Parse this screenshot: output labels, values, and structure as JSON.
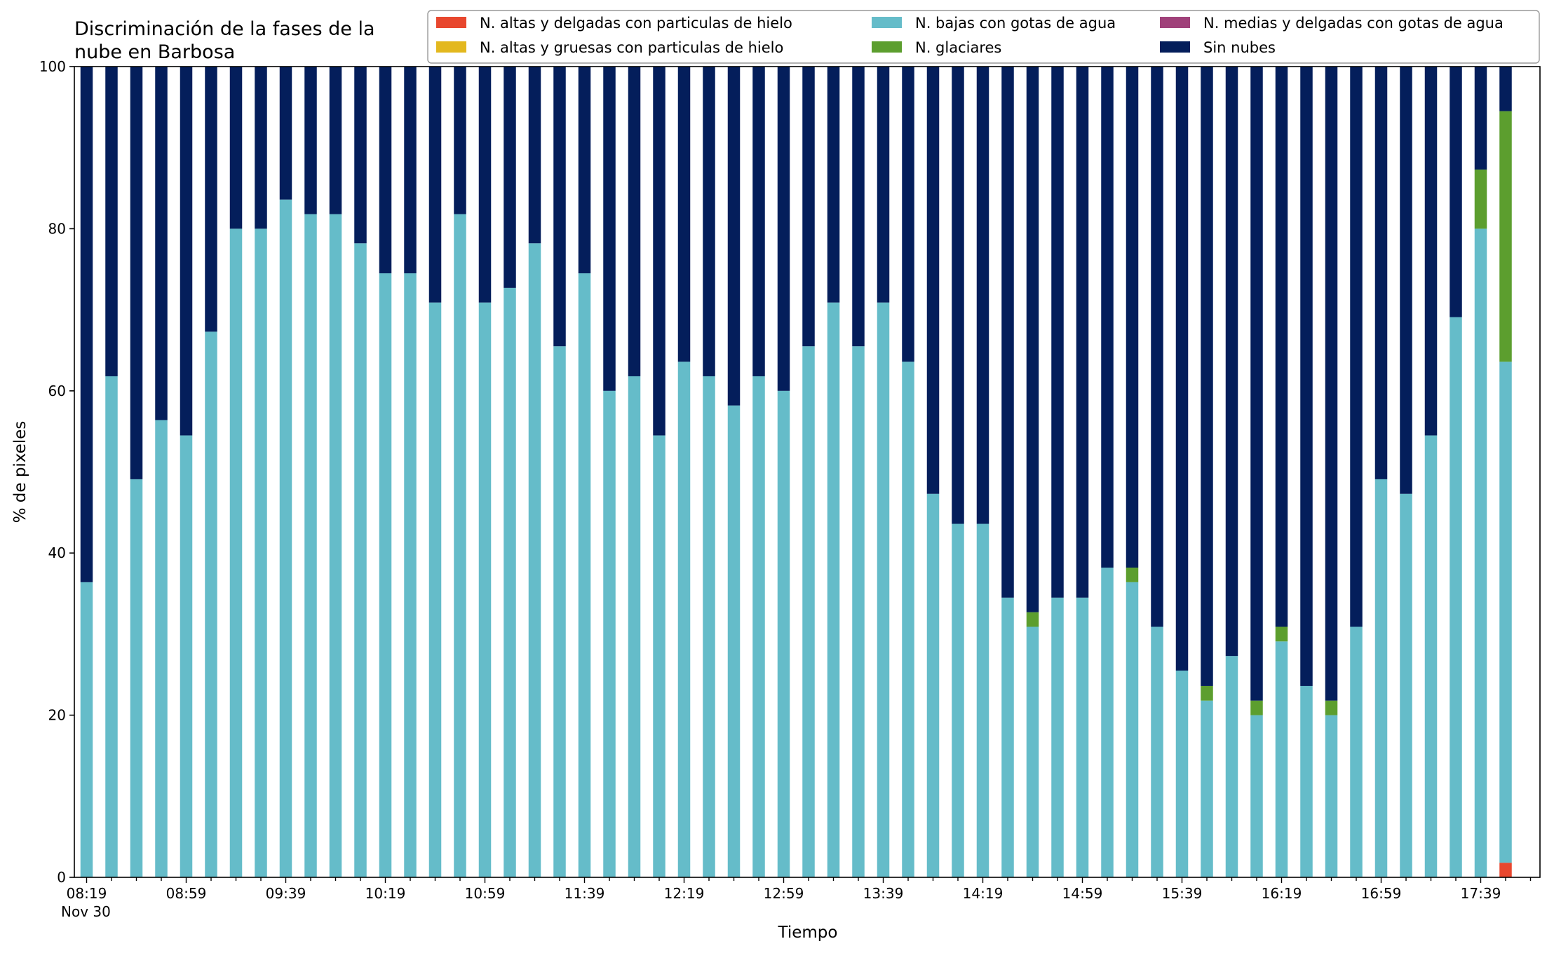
{
  "chart_data": {
    "type": "bar",
    "stacked": true,
    "title": "Discriminación de la fases de la nube en Barbosa",
    "title_lines": [
      "Discriminación de la fases de la",
      "nube en Barbosa"
    ],
    "xlabel": "Tiempo",
    "ylabel": "% de pixeles",
    "ylim": [
      0,
      100
    ],
    "yticks": [
      0,
      20,
      40,
      60,
      80,
      100
    ],
    "xtick_labels": [
      "08:19",
      "08:59",
      "09:39",
      "10:19",
      "10:59",
      "11:39",
      "12:19",
      "12:59",
      "13:39",
      "14:19",
      "14:59",
      "15:39",
      "16:19",
      "16:59",
      "17:39"
    ],
    "xtick_sublabel": "Nov 30",
    "grid": false,
    "legend_position": "top",
    "x": [
      "08:19",
      "08:29",
      "08:39",
      "08:49",
      "08:59",
      "09:09",
      "09:19",
      "09:29",
      "09:39",
      "09:49",
      "09:59",
      "10:09",
      "10:19",
      "10:29",
      "10:39",
      "10:49",
      "10:59",
      "11:09",
      "11:19",
      "11:29",
      "11:39",
      "11:49",
      "11:59",
      "12:09",
      "12:19",
      "12:29",
      "12:39",
      "12:49",
      "12:59",
      "13:09",
      "13:19",
      "13:29",
      "13:39",
      "13:49",
      "13:59",
      "14:09",
      "14:19",
      "14:29",
      "14:39",
      "14:49",
      "14:59",
      "15:09",
      "15:19",
      "15:29",
      "15:39",
      "15:49",
      "15:59",
      "16:09",
      "16:19",
      "16:29",
      "16:39",
      "16:49",
      "16:59",
      "17:09",
      "17:19",
      "17:29",
      "17:39",
      "17:49"
    ],
    "series": [
      {
        "name": "N. altas y delgadas con particulas de hielo",
        "color": "#e8472e",
        "values": [
          0,
          0,
          0,
          0,
          0,
          0,
          0,
          0,
          0,
          0,
          0,
          0,
          0,
          0,
          0,
          0,
          0,
          0,
          0,
          0,
          0,
          0,
          0,
          0,
          0,
          0,
          0,
          0,
          0,
          0,
          0,
          0,
          0,
          0,
          0,
          0,
          0,
          0,
          0,
          0,
          0,
          0,
          0,
          0,
          0,
          0,
          0,
          0,
          0,
          0,
          0,
          0,
          0,
          0,
          0,
          0,
          0,
          1.8
        ]
      },
      {
        "name": "N. altas y gruesas con particulas de hielo",
        "color": "#e3b81e",
        "values": [
          0,
          0,
          0,
          0,
          0,
          0,
          0,
          0,
          0,
          0,
          0,
          0,
          0,
          0,
          0,
          0,
          0,
          0,
          0,
          0,
          0,
          0,
          0,
          0,
          0,
          0,
          0,
          0,
          0,
          0,
          0,
          0,
          0,
          0,
          0,
          0,
          0,
          0,
          0,
          0,
          0,
          0,
          0,
          0,
          0,
          0,
          0,
          0,
          0,
          0,
          0,
          0,
          0,
          0,
          0,
          0,
          0,
          0
        ]
      },
      {
        "name": "N. bajas con gotas de agua",
        "color": "#65bcc9",
        "values": [
          36.4,
          61.8,
          49.1,
          56.4,
          54.5,
          67.3,
          80.0,
          80.0,
          83.6,
          81.8,
          81.8,
          78.2,
          74.5,
          74.5,
          70.9,
          81.8,
          70.9,
          72.7,
          78.2,
          65.5,
          74.5,
          60.0,
          61.8,
          54.5,
          63.6,
          61.8,
          58.2,
          61.8,
          60.0,
          65.5,
          70.9,
          65.5,
          70.9,
          63.6,
          47.3,
          43.6,
          43.6,
          34.5,
          30.9,
          34.5,
          34.5,
          38.2,
          36.4,
          30.9,
          25.5,
          21.8,
          27.3,
          20.0,
          29.1,
          23.6,
          20.0,
          30.9,
          49.1,
          47.3,
          54.5,
          69.1,
          80.0,
          61.8
        ]
      },
      {
        "name": "N. glaciares",
        "color": "#5c9e2e",
        "values": [
          0,
          0,
          0,
          0,
          0,
          0,
          0,
          0,
          0,
          0,
          0,
          0,
          0,
          0,
          0,
          0,
          0,
          0,
          0,
          0,
          0,
          0,
          0,
          0,
          0,
          0,
          0,
          0,
          0,
          0,
          0,
          0,
          0,
          0,
          0,
          0,
          0,
          0,
          1.8,
          0,
          0,
          0,
          1.8,
          0,
          0,
          1.8,
          0,
          1.8,
          1.8,
          0,
          1.8,
          0,
          0,
          0,
          0,
          0,
          7.3,
          30.9
        ]
      },
      {
        "name": "N. medias y delgadas con gotas de agua",
        "color": "#a0417a",
        "values": [
          0,
          0,
          0,
          0,
          0,
          0,
          0,
          0,
          0,
          0,
          0,
          0,
          0,
          0,
          0,
          0,
          0,
          0,
          0,
          0,
          0,
          0,
          0,
          0,
          0,
          0,
          0,
          0,
          0,
          0,
          0,
          0,
          0,
          0,
          0,
          0,
          0,
          0,
          0,
          0,
          0,
          0,
          0,
          0,
          0,
          0,
          0,
          0,
          0,
          0,
          0,
          0,
          0,
          0,
          0,
          0,
          0,
          0
        ]
      },
      {
        "name": "Sin nubes",
        "color": "#041e5b",
        "values": [
          63.6,
          38.2,
          50.9,
          43.6,
          45.5,
          32.7,
          20.0,
          20.0,
          16.4,
          18.2,
          18.2,
          21.8,
          25.5,
          25.5,
          29.1,
          18.2,
          29.1,
          27.3,
          21.8,
          34.5,
          25.5,
          40.0,
          38.2,
          45.5,
          36.4,
          38.2,
          41.8,
          38.2,
          40.0,
          34.5,
          29.1,
          34.5,
          29.1,
          36.4,
          52.7,
          56.4,
          56.4,
          65.5,
          67.3,
          65.5,
          65.5,
          61.8,
          61.8,
          69.1,
          74.5,
          76.4,
          72.7,
          78.2,
          69.1,
          76.4,
          78.2,
          69.1,
          50.9,
          52.7,
          45.5,
          30.9,
          12.7,
          5.5
        ]
      }
    ]
  }
}
